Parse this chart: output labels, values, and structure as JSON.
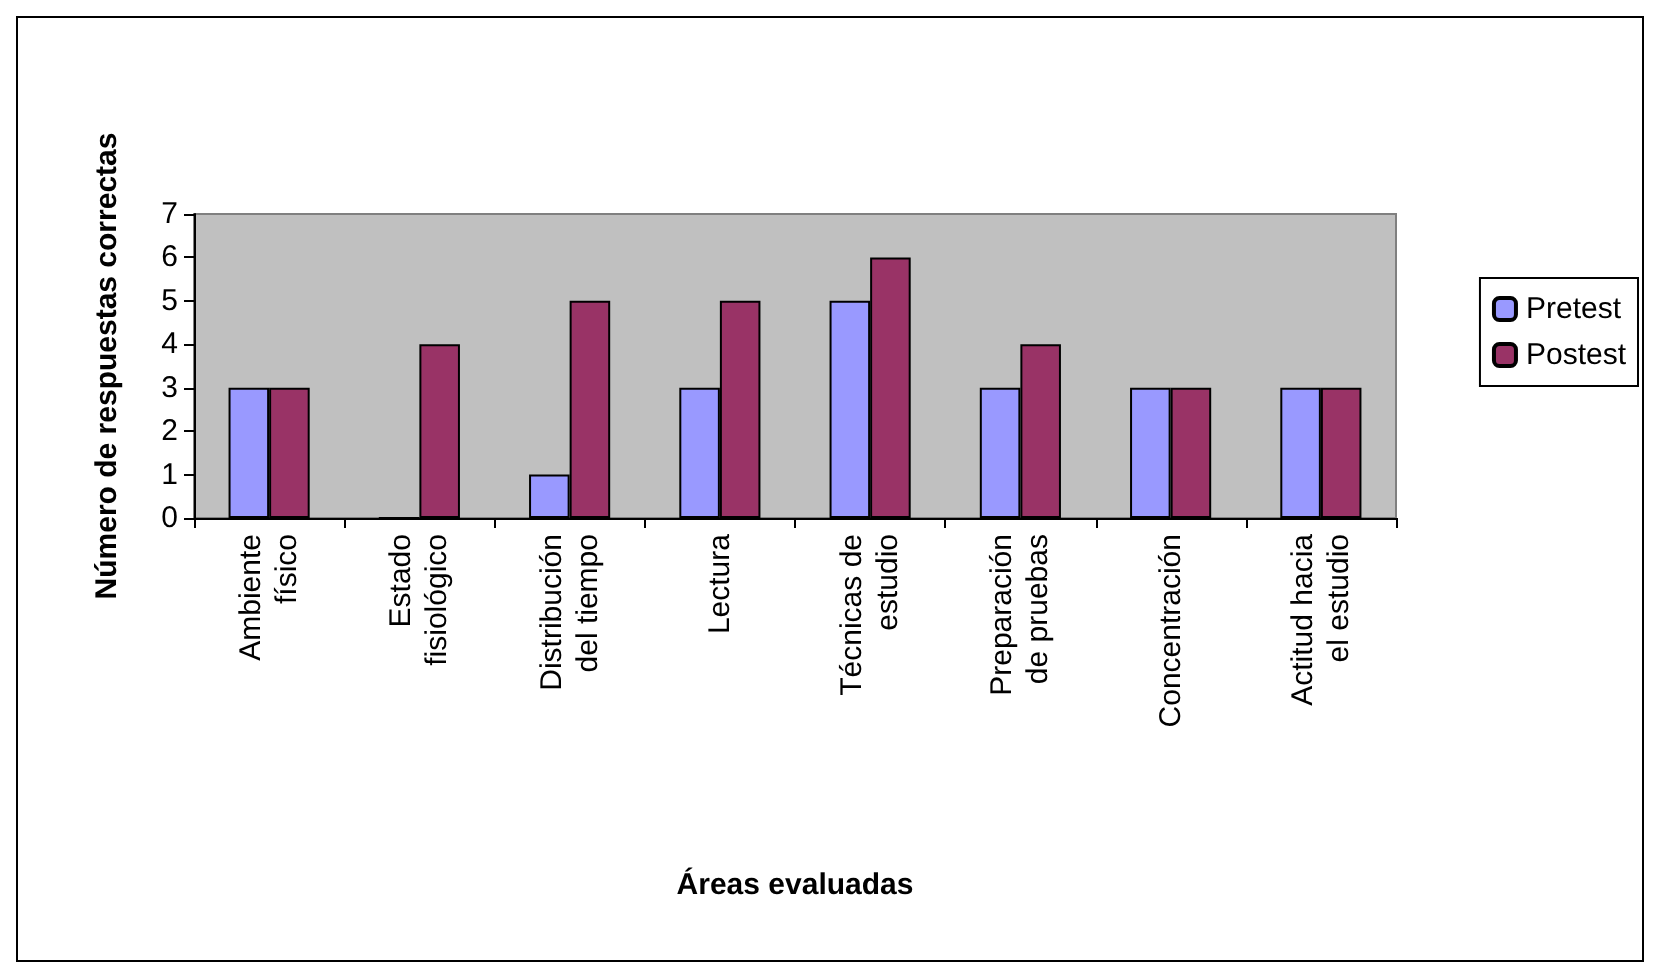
{
  "chart_data": {
    "type": "bar",
    "xlabel": "Áreas evaluadas",
    "ylabel": "Número de respuestas correctas",
    "categories": [
      "Ambiente\nfísico",
      "Estado\nfisiológico",
      "Distribución\ndel tiempo",
      "Lectura",
      "Técnicas de\nestudio",
      "Preparación\nde pruebas",
      "Concentración",
      "Actitud hacia\nel estudio"
    ],
    "series": [
      {
        "name": "Pretest",
        "color": "#9999ff",
        "values": [
          3,
          0,
          1,
          3,
          5,
          3,
          3,
          3
        ]
      },
      {
        "name": "Postest",
        "color": "#993366",
        "values": [
          3,
          4,
          5,
          5,
          6,
          4,
          3,
          3
        ]
      }
    ],
    "ylim": [
      0,
      7
    ],
    "yticks": [
      0,
      1,
      2,
      3,
      4,
      5,
      6,
      7
    ],
    "grid": false,
    "legend": "right"
  }
}
